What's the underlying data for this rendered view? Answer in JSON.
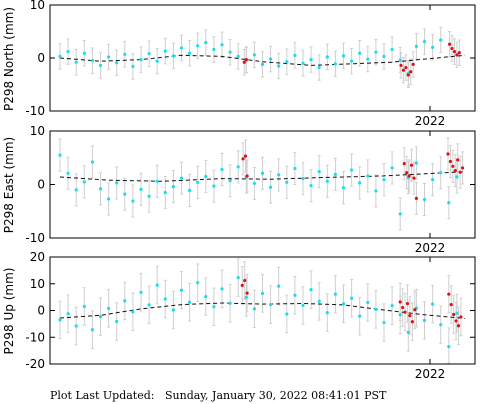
{
  "footer": {
    "label": "Plot Last Updated:",
    "value": "Sunday, January 30, 2022 08:41:01 PST"
  },
  "colors": {
    "primary_points": "#16dfea",
    "recent_points": "#e0101a",
    "error_bars": "#cfcfcf",
    "trend": "#111111"
  },
  "chart_data": [
    {
      "type": "scatter",
      "ylabel": "P298 North (mm)",
      "ylim": [
        -10,
        10
      ],
      "yticks": [
        -10,
        0,
        10
      ],
      "xtick_labels": [
        "2022"
      ],
      "error_bar_mm": 2.4,
      "series": [
        {
          "values": [
            {
              "x": 0.0,
              "y": 0.3
            },
            {
              "x": 0.02,
              "y": 1.2
            },
            {
              "x": 0.04,
              "y": -0.8
            },
            {
              "x": 0.06,
              "y": 0.9
            },
            {
              "x": 0.08,
              "y": -0.5
            },
            {
              "x": 0.1,
              "y": -1.4
            },
            {
              "x": 0.12,
              "y": 0.2
            },
            {
              "x": 0.14,
              "y": -0.9
            },
            {
              "x": 0.16,
              "y": 0.7
            },
            {
              "x": 0.18,
              "y": -1.6
            },
            {
              "x": 0.2,
              "y": -0.3
            },
            {
              "x": 0.22,
              "y": 0.8
            },
            {
              "x": 0.24,
              "y": -0.6
            },
            {
              "x": 0.26,
              "y": 1.3
            },
            {
              "x": 0.28,
              "y": 0.4
            },
            {
              "x": 0.3,
              "y": 1.9
            },
            {
              "x": 0.32,
              "y": 0.9
            },
            {
              "x": 0.34,
              "y": 2.3
            },
            {
              "x": 0.36,
              "y": 2.9
            },
            {
              "x": 0.38,
              "y": 1.6
            },
            {
              "x": 0.4,
              "y": 2.5
            },
            {
              "x": 0.42,
              "y": 1.1
            },
            {
              "x": 0.44,
              "y": 0.3
            },
            {
              "x": 0.46,
              "y": -0.4
            },
            {
              "x": 0.48,
              "y": 0.6
            },
            {
              "x": 0.5,
              "y": -1.2
            },
            {
              "x": 0.52,
              "y": -0.2
            },
            {
              "x": 0.54,
              "y": -1.5
            },
            {
              "x": 0.56,
              "y": -0.7
            },
            {
              "x": 0.58,
              "y": 0.5
            },
            {
              "x": 0.6,
              "y": -1.0
            },
            {
              "x": 0.62,
              "y": -0.3
            },
            {
              "x": 0.64,
              "y": -1.8
            },
            {
              "x": 0.66,
              "y": 0.2
            },
            {
              "x": 0.68,
              "y": -1.1
            },
            {
              "x": 0.7,
              "y": 0.4
            },
            {
              "x": 0.72,
              "y": -0.6
            },
            {
              "x": 0.74,
              "y": 0.9
            },
            {
              "x": 0.76,
              "y": -0.2
            },
            {
              "x": 0.78,
              "y": 1.1
            },
            {
              "x": 0.8,
              "y": 0.3
            },
            {
              "x": 0.82,
              "y": 1.6
            },
            {
              "x": 0.84,
              "y": -0.4
            },
            {
              "x": 0.86,
              "y": -2.9
            },
            {
              "x": 0.88,
              "y": 2.2
            },
            {
              "x": 0.9,
              "y": 3.1
            },
            {
              "x": 0.92,
              "y": 2.0
            },
            {
              "x": 0.94,
              "y": 3.4
            }
          ]
        },
        {
          "values": [
            {
              "x": 0.455,
              "y": -0.8
            },
            {
              "x": 0.46,
              "y": -0.3
            },
            {
              "x": 0.842,
              "y": -1.4
            },
            {
              "x": 0.848,
              "y": -2.3
            },
            {
              "x": 0.854,
              "y": -1.8
            },
            {
              "x": 0.86,
              "y": -3.2
            },
            {
              "x": 0.866,
              "y": -2.6
            },
            {
              "x": 0.872,
              "y": -1.2
            },
            {
              "x": 0.962,
              "y": 2.6
            },
            {
              "x": 0.968,
              "y": 1.8
            },
            {
              "x": 0.974,
              "y": 1.2
            },
            {
              "x": 0.98,
              "y": 0.6
            },
            {
              "x": 0.986,
              "y": 1.0
            }
          ]
        }
      ],
      "trend": [
        {
          "x": 0.0,
          "y": 0.0
        },
        {
          "x": 0.1,
          "y": -0.6
        },
        {
          "x": 0.2,
          "y": -0.3
        },
        {
          "x": 0.3,
          "y": 0.5
        },
        {
          "x": 0.4,
          "y": 0.3
        },
        {
          "x": 0.5,
          "y": -0.7
        },
        {
          "x": 0.62,
          "y": -1.4
        },
        {
          "x": 0.72,
          "y": -1.1
        },
        {
          "x": 0.82,
          "y": -0.8
        },
        {
          "x": 0.9,
          "y": -0.2
        },
        {
          "x": 1.0,
          "y": 0.5
        }
      ]
    },
    {
      "type": "scatter",
      "ylabel": "P298 East (mm)",
      "ylim": [
        -10,
        10
      ],
      "yticks": [
        -10,
        0,
        10
      ],
      "xtick_labels": [
        "2022"
      ],
      "error_bar_mm": 3.0,
      "series": [
        {
          "values": [
            {
              "x": 0.0,
              "y": 5.5
            },
            {
              "x": 0.02,
              "y": 2.1
            },
            {
              "x": 0.04,
              "y": -1.0
            },
            {
              "x": 0.06,
              "y": 0.5
            },
            {
              "x": 0.08,
              "y": 4.2
            },
            {
              "x": 0.1,
              "y": -0.8
            },
            {
              "x": 0.12,
              "y": -2.7
            },
            {
              "x": 0.14,
              "y": 0.3
            },
            {
              "x": 0.16,
              "y": -1.8
            },
            {
              "x": 0.18,
              "y": -3.1
            },
            {
              "x": 0.2,
              "y": -0.9
            },
            {
              "x": 0.22,
              "y": -2.2
            },
            {
              "x": 0.24,
              "y": 0.6
            },
            {
              "x": 0.26,
              "y": -1.5
            },
            {
              "x": 0.28,
              "y": -0.4
            },
            {
              "x": 0.3,
              "y": 1.2
            },
            {
              "x": 0.32,
              "y": -1.1
            },
            {
              "x": 0.34,
              "y": 0.4
            },
            {
              "x": 0.36,
              "y": 1.5
            },
            {
              "x": 0.38,
              "y": -0.3
            },
            {
              "x": 0.4,
              "y": 2.8
            },
            {
              "x": 0.42,
              "y": 0.7
            },
            {
              "x": 0.44,
              "y": 3.3
            },
            {
              "x": 0.46,
              "y": 1.4
            },
            {
              "x": 0.48,
              "y": 0.2
            },
            {
              "x": 0.5,
              "y": 2.1
            },
            {
              "x": 0.52,
              "y": -0.5
            },
            {
              "x": 0.54,
              "y": 1.8
            },
            {
              "x": 0.56,
              "y": 0.4
            },
            {
              "x": 0.58,
              "y": 3.0
            },
            {
              "x": 0.6,
              "y": 1.1
            },
            {
              "x": 0.62,
              "y": -0.2
            },
            {
              "x": 0.64,
              "y": 2.4
            },
            {
              "x": 0.66,
              "y": 0.6
            },
            {
              "x": 0.68,
              "y": 1.9
            },
            {
              "x": 0.7,
              "y": -0.6
            },
            {
              "x": 0.72,
              "y": 2.7
            },
            {
              "x": 0.74,
              "y": 0.3
            },
            {
              "x": 0.76,
              "y": 1.6
            },
            {
              "x": 0.78,
              "y": -1.2
            },
            {
              "x": 0.8,
              "y": 0.9
            },
            {
              "x": 0.82,
              "y": 3.1
            },
            {
              "x": 0.84,
              "y": -5.5
            },
            {
              "x": 0.86,
              "y": 1.3
            },
            {
              "x": 0.88,
              "y": 4.0
            },
            {
              "x": 0.9,
              "y": -2.8
            },
            {
              "x": 0.92,
              "y": 0.9
            },
            {
              "x": 0.94,
              "y": 2.2
            },
            {
              "x": 0.96,
              "y": -3.4
            },
            {
              "x": 0.98,
              "y": 1.4
            }
          ]
        },
        {
          "values": [
            {
              "x": 0.452,
              "y": 4.8
            },
            {
              "x": 0.458,
              "y": 5.3
            },
            {
              "x": 0.462,
              "y": 1.6
            },
            {
              "x": 0.85,
              "y": 3.9
            },
            {
              "x": 0.856,
              "y": 2.2
            },
            {
              "x": 0.862,
              "y": 1.6
            },
            {
              "x": 0.868,
              "y": 3.6
            },
            {
              "x": 0.874,
              "y": 1.2
            },
            {
              "x": 0.88,
              "y": -2.6
            },
            {
              "x": 0.958,
              "y": 5.7
            },
            {
              "x": 0.964,
              "y": 4.3
            },
            {
              "x": 0.97,
              "y": 3.4
            },
            {
              "x": 0.976,
              "y": 2.6
            },
            {
              "x": 0.982,
              "y": 4.6
            },
            {
              "x": 0.988,
              "y": 2.3
            },
            {
              "x": 0.994,
              "y": 3.1
            }
          ]
        }
      ],
      "trend": [
        {
          "x": 0.0,
          "y": 1.4
        },
        {
          "x": 0.12,
          "y": 0.8
        },
        {
          "x": 0.25,
          "y": 0.6
        },
        {
          "x": 0.4,
          "y": 1.1
        },
        {
          "x": 0.52,
          "y": 1.0
        },
        {
          "x": 0.65,
          "y": 1.3
        },
        {
          "x": 0.8,
          "y": 1.6
        },
        {
          "x": 0.9,
          "y": 2.0
        },
        {
          "x": 1.0,
          "y": 2.4
        }
      ]
    },
    {
      "type": "scatter",
      "ylabel": "P298 Up (mm)",
      "ylim": [
        -20,
        20
      ],
      "yticks": [
        -20,
        -10,
        0,
        10,
        20
      ],
      "xtick_labels": [
        "2022"
      ],
      "error_bar_mm": 7.0,
      "series": [
        {
          "values": [
            {
              "x": 0.0,
              "y": -3.5
            },
            {
              "x": 0.02,
              "y": -1.2
            },
            {
              "x": 0.04,
              "y": -5.8
            },
            {
              "x": 0.06,
              "y": 1.5
            },
            {
              "x": 0.08,
              "y": -7.2
            },
            {
              "x": 0.1,
              "y": -2.3
            },
            {
              "x": 0.12,
              "y": 0.8
            },
            {
              "x": 0.14,
              "y": -4.1
            },
            {
              "x": 0.16,
              "y": 3.6
            },
            {
              "x": 0.18,
              "y": -0.5
            },
            {
              "x": 0.2,
              "y": 6.8
            },
            {
              "x": 0.22,
              "y": 2.1
            },
            {
              "x": 0.24,
              "y": 9.5
            },
            {
              "x": 0.26,
              "y": 4.3
            },
            {
              "x": 0.28,
              "y": 0.2
            },
            {
              "x": 0.3,
              "y": 7.6
            },
            {
              "x": 0.32,
              "y": 3.1
            },
            {
              "x": 0.34,
              "y": 10.4
            },
            {
              "x": 0.36,
              "y": 5.2
            },
            {
              "x": 0.38,
              "y": 1.4
            },
            {
              "x": 0.4,
              "y": 8.1
            },
            {
              "x": 0.42,
              "y": 2.7
            },
            {
              "x": 0.44,
              "y": 12.3
            },
            {
              "x": 0.46,
              "y": 4.9
            },
            {
              "x": 0.48,
              "y": 0.6
            },
            {
              "x": 0.5,
              "y": 6.4
            },
            {
              "x": 0.52,
              "y": 2.2
            },
            {
              "x": 0.54,
              "y": 9.1
            },
            {
              "x": 0.56,
              "y": -1.3
            },
            {
              "x": 0.58,
              "y": 5.7
            },
            {
              "x": 0.6,
              "y": 1.9
            },
            {
              "x": 0.62,
              "y": 7.8
            },
            {
              "x": 0.64,
              "y": 3.4
            },
            {
              "x": 0.66,
              "y": -0.8
            },
            {
              "x": 0.68,
              "y": 6.1
            },
            {
              "x": 0.7,
              "y": 2.5
            },
            {
              "x": 0.72,
              "y": 4.6
            },
            {
              "x": 0.74,
              "y": -2.1
            },
            {
              "x": 0.76,
              "y": 3.0
            },
            {
              "x": 0.78,
              "y": 0.4
            },
            {
              "x": 0.8,
              "y": -4.5
            },
            {
              "x": 0.82,
              "y": 1.8
            },
            {
              "x": 0.84,
              "y": -1.6
            },
            {
              "x": 0.86,
              "y": -8.2
            },
            {
              "x": 0.88,
              "y": 0.9
            },
            {
              "x": 0.9,
              "y": -3.7
            },
            {
              "x": 0.92,
              "y": 2.4
            },
            {
              "x": 0.94,
              "y": -5.3
            },
            {
              "x": 0.96,
              "y": -13.5
            },
            {
              "x": 0.98,
              "y": -1.0
            }
          ]
        },
        {
          "values": [
            {
              "x": 0.45,
              "y": 9.4
            },
            {
              "x": 0.456,
              "y": 11.2
            },
            {
              "x": 0.462,
              "y": 6.5
            },
            {
              "x": 0.84,
              "y": 3.2
            },
            {
              "x": 0.846,
              "y": 1.1
            },
            {
              "x": 0.852,
              "y": -0.6
            },
            {
              "x": 0.858,
              "y": 2.6
            },
            {
              "x": 0.864,
              "y": -1.9
            },
            {
              "x": 0.87,
              "y": -4.2
            },
            {
              "x": 0.876,
              "y": 0.3
            },
            {
              "x": 0.96,
              "y": 6.1
            },
            {
              "x": 0.966,
              "y": 2.2
            },
            {
              "x": 0.972,
              "y": -1.5
            },
            {
              "x": 0.978,
              "y": -3.9
            },
            {
              "x": 0.984,
              "y": -5.7
            },
            {
              "x": 0.99,
              "y": -2.4
            }
          ]
        }
      ],
      "trend": [
        {
          "x": 0.0,
          "y": -2.8
        },
        {
          "x": 0.1,
          "y": -1.8
        },
        {
          "x": 0.2,
          "y": 0.6
        },
        {
          "x": 0.3,
          "y": 2.2
        },
        {
          "x": 0.4,
          "y": 2.8
        },
        {
          "x": 0.5,
          "y": 2.4
        },
        {
          "x": 0.6,
          "y": 2.6
        },
        {
          "x": 0.7,
          "y": 2.1
        },
        {
          "x": 0.8,
          "y": 0.2
        },
        {
          "x": 0.9,
          "y": -1.6
        },
        {
          "x": 1.0,
          "y": -3.0
        }
      ]
    }
  ]
}
